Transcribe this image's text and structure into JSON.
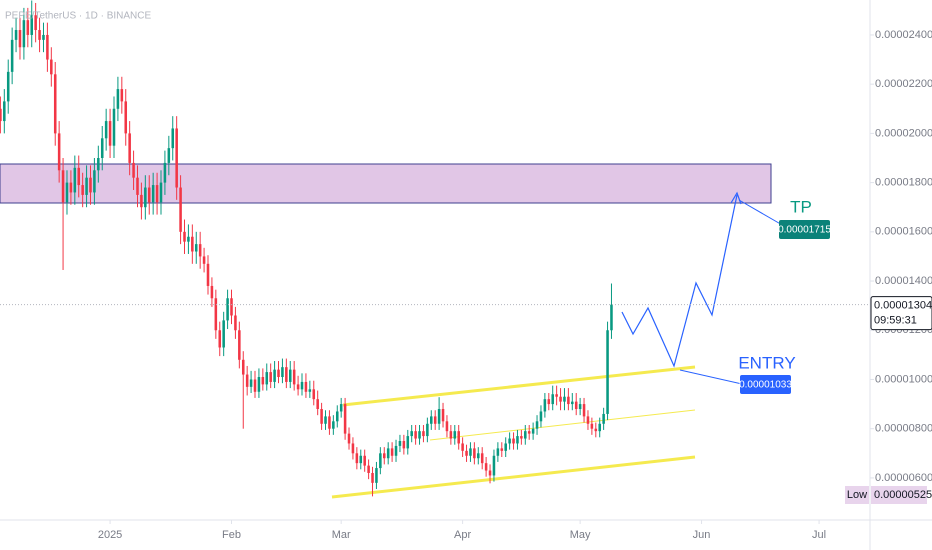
{
  "chart_data": {
    "type": "candlestick",
    "title": "PEPE/TetherUS · 1D · BINANCE",
    "open": [
      2.1e-05,
      2.05e-05,
      2.13e-05,
      2.25e-05,
      2.38e-05,
      2.42e-05,
      2.35e-05,
      2.46e-05,
      2.4e-05,
      2.48e-05,
      2.42e-05,
      2.38e-05,
      2.4e-05,
      2.3e-05,
      2.24e-05,
      2e-05,
      1.85e-05,
      1.72e-05,
      1.8e-05,
      1.76e-05,
      1.86e-05,
      1.79e-05,
      1.75e-05,
      1.82e-05,
      1.76e-05,
      1.85e-05,
      1.9e-05,
      1.98e-05,
      2.05e-05,
      1.95e-05,
      2.1e-05,
      2.18e-05,
      2.13e-05,
      2e-05,
      1.88e-05,
      1.82e-05,
      1.75e-05,
      1.7e-05,
      1.78e-05,
      1.72e-05,
      1.79e-05,
      1.72e-05,
      1.8e-05,
      1.88e-05,
      1.94e-05,
      2.02e-05,
      1.78e-05,
      1.6e-05,
      1.56e-05,
      1.58e-05,
      1.52e-05,
      1.55e-05,
      1.5e-05,
      1.47e-05,
      1.38e-05,
      1.33e-05,
      1.2e-05,
      1.13e-05,
      1.24e-05,
      1.33e-05,
      1.26e-05,
      1.2e-05,
      1.08e-05,
      1.02e-05,
      9.7e-06,
      1e-05,
      9.5e-06,
      1.01e-05,
      9.8e-06,
      1.03e-05,
      9.9e-06,
      1.04e-05,
      1.01e-05,
      1.05e-05,
      9.9e-06,
      1.04e-05,
      9.8e-06,
      9.6e-06,
      9.9e-06,
      9.5e-06,
      9.6e-06,
      9.2e-06,
      8.8e-06,
      8.2e-06,
      8.5e-06,
      8e-06,
      8.3e-06,
      8.7e-06,
      9e-06,
      7.8e-06,
      7.4e-06,
      7e-06,
      6.6e-06,
      6.9e-06,
      6.5e-06,
      6.2e-06,
      5.8e-06,
      6.4e-06,
      7e-06,
      6.8e-06,
      7.2e-06,
      6.9e-06,
      7.3e-06,
      7.5e-06,
      7.2e-06,
      7.7e-06,
      7.9e-06,
      7.6e-06,
      7.9e-06,
      7.7e-06,
      8.2e-06,
      8.5e-06,
      8.2e-06,
      8.8e-06,
      8.3e-06,
      7.9e-06,
      7.6e-06,
      7.9e-06,
      7.4e-06,
      7.1e-06,
      6.9e-06,
      7.2e-06,
      6.8e-06,
      7e-06,
      6.6e-06,
      6.3e-06,
      6.1e-06,
      6.9e-06,
      7.2e-06,
      7.1e-06,
      7.4e-06,
      7.6e-06,
      7.4e-06,
      7.7e-06,
      7.6e-06,
      7.9e-06,
      7.8e-06,
      8e-06,
      8.3e-06,
      8.7e-06,
      9.2e-06,
      9e-06,
      9.4e-06,
      9.3e-06,
      9.1e-06,
      9.3e-06,
      9e-06,
      9.1e-06,
      8.8e-06,
      9e-06,
      8.5e-06,
      8.2e-06,
      8e-06,
      7.9e-06,
      8.2e-06,
      8.6e-06,
      1.2e-05
    ],
    "high": [
      2.15e-05,
      2.18e-05,
      2.3e-05,
      2.43e-05,
      2.47e-05,
      2.47e-05,
      2.51e-05,
      2.51e-05,
      2.54e-05,
      2.53e-05,
      2.47e-05,
      2.45e-05,
      2.45e-05,
      2.35e-05,
      2.29e-05,
      2.05e-05,
      1.9e-05,
      1.85e-05,
      1.85e-05,
      1.91e-05,
      1.91e-05,
      1.84e-05,
      1.87e-05,
      1.87e-05,
      1.9e-05,
      1.95e-05,
      2.03e-05,
      2.1e-05,
      2.1e-05,
      2.15e-05,
      2.23e-05,
      2.23e-05,
      2.18e-05,
      2.05e-05,
      1.93e-05,
      1.87e-05,
      1.8e-05,
      1.83e-05,
      1.83e-05,
      1.84e-05,
      1.84e-05,
      1.85e-05,
      1.93e-05,
      1.99e-05,
      2.07e-05,
      2.07e-05,
      1.83e-05,
      1.65e-05,
      1.63e-05,
      1.63e-05,
      1.6e-05,
      1.6e-05,
      1.535e-05,
      1.505e-05,
      1.415e-05,
      1.365e-05,
      1.235e-05,
      1.275e-05,
      1.365e-05,
      1.365e-05,
      1.295e-05,
      1.235e-05,
      1.115e-05,
      1.055e-05,
      1.035e-05,
      1.035e-05,
      1.045e-05,
      1.045e-05,
      1.065e-05,
      1.065e-05,
      1.075e-05,
      1.075e-05,
      1.085e-05,
      1.085e-05,
      1.075e-05,
      1.075e-05,
      1.015e-05,
      1.025e-05,
      1.025e-05,
      9.95e-06,
      9.95e-06,
      9.55e-06,
      9.05e-06,
      8.75e-06,
      8.75e-06,
      8.55e-06,
      8.95e-06,
      9.25e-06,
      9.25e-06,
      8.05e-06,
      7.65e-06,
      7.25e-06,
      7.15e-06,
      7.15e-06,
      6.75e-06,
      6.45e-06,
      6.65e-06,
      7.25e-06,
      7.25e-06,
      7.45e-06,
      7.45e-06,
      7.55e-06,
      7.75e-06,
      7.75e-06,
      7.95e-06,
      8.15e-06,
      8.15e-06,
      8.15e-06,
      8.15e-06,
      8.45e-06,
      8.75e-06,
      8.75e-06,
      9.28e-06,
      9.05e-06,
      8.55e-06,
      8.15e-06,
      8.15e-06,
      8.15e-06,
      7.65e-06,
      7.35e-06,
      7.45e-06,
      7.45e-06,
      7.25e-06,
      7.25e-06,
      6.85e-06,
      6.55e-06,
      7.15e-06,
      7.45e-06,
      7.45e-06,
      7.65e-06,
      7.85e-06,
      7.85e-06,
      7.95e-06,
      7.95e-06,
      8.15e-06,
      8.15e-06,
      8.25e-06,
      8.55e-06,
      8.95e-06,
      9.45e-06,
      9.45e-06,
      9.75e-06,
      9.75e-06,
      9.65e-06,
      9.65e-06,
      9.65e-06,
      9.45e-06,
      9.45e-06,
      9.25e-06,
      9.25e-06,
      8.75e-06,
      8.45e-06,
      8.25e-06,
      8.45e-06,
      8.85e-06,
      1.235e-05,
      1.39e-05
    ],
    "low": [
      2e-05,
      2e-05,
      2.08e-05,
      2.2e-05,
      2.33e-05,
      2.3e-05,
      2.3e-05,
      2.35e-05,
      2.35e-05,
      2.37e-05,
      2.33e-05,
      2.33e-05,
      2.25e-05,
      2.19e-05,
      1.95e-05,
      1.8e-05,
      1.445e-05,
      1.67e-05,
      1.71e-05,
      1.71e-05,
      1.74e-05,
      1.7e-05,
      1.7e-05,
      1.71e-05,
      1.71e-05,
      1.8e-05,
      1.85e-05,
      1.93e-05,
      1.9e-05,
      1.9e-05,
      2.05e-05,
      2.08e-05,
      1.95e-05,
      1.83e-05,
      1.77e-05,
      1.7e-05,
      1.65e-05,
      1.65e-05,
      1.67e-05,
      1.67e-05,
      1.67e-05,
      1.67e-05,
      1.75e-05,
      1.83e-05,
      1.89e-05,
      1.73e-05,
      1.55e-05,
      1.51e-05,
      1.51e-05,
      1.47e-05,
      1.47e-05,
      1.45e-05,
      1.435e-05,
      1.345e-05,
      1.295e-05,
      1.165e-05,
      1.095e-05,
      1.095e-05,
      1.205e-05,
      1.225e-05,
      1.165e-05,
      1.045e-05,
      8e-06,
      9.35e-06,
      9.45e-06,
      9.25e-06,
      9.25e-06,
      9.55e-06,
      9.55e-06,
      9.65e-06,
      9.65e-06,
      9.85e-06,
      9.85e-06,
      9.65e-06,
      9.65e-06,
      9.55e-06,
      9.35e-06,
      9.35e-06,
      9.25e-06,
      9.25e-06,
      8.95e-06,
      8.55e-06,
      7.95e-06,
      7.95e-06,
      7.75e-06,
      7.75e-06,
      8.05e-06,
      8.45e-06,
      7.55e-06,
      7.15e-06,
      6.75e-06,
      6.35e-06,
      6.35e-06,
      6.25e-06,
      5.95e-06,
      5.25e-06,
      5.55e-06,
      6.15e-06,
      6.55e-06,
      6.55e-06,
      6.65e-06,
      6.65e-06,
      7.05e-06,
      6.95e-06,
      6.95e-06,
      7.45e-06,
      7.35e-06,
      7.35e-06,
      7.45e-06,
      7.45e-06,
      7.95e-06,
      7.95e-06,
      7.95e-06,
      8.05e-06,
      7.65e-06,
      7.35e-06,
      7.35e-06,
      7.15e-06,
      6.85e-06,
      6.65e-06,
      6.65e-06,
      6.55e-06,
      6.55e-06,
      6.35e-06,
      6.05e-06,
      5.78e-06,
      5.85e-06,
      6.65e-06,
      6.85e-06,
      6.85e-06,
      7.15e-06,
      7.15e-06,
      7.15e-06,
      7.35e-06,
      7.35e-06,
      7.55e-06,
      7.55e-06,
      7.75e-06,
      8.05e-06,
      8.45e-06,
      8.75e-06,
      8.75e-06,
      8.95e-06,
      8.75e-06,
      8.75e-06,
      8.75e-06,
      8.75e-06,
      8.55e-06,
      8.55e-06,
      8.25e-06,
      7.95e-06,
      7.75e-06,
      7.65e-06,
      7.65e-06,
      7.95e-06,
      8.35e-06,
      1.165e-05
    ],
    "close": [
      2.05e-05,
      2.13e-05,
      2.25e-05,
      2.38e-05,
      2.42e-05,
      2.35e-05,
      2.46e-05,
      2.4e-05,
      2.48e-05,
      2.42e-05,
      2.38e-05,
      2.4e-05,
      2.3e-05,
      2.24e-05,
      2e-05,
      1.85e-05,
      1.72e-05,
      1.8e-05,
      1.76e-05,
      1.86e-05,
      1.79e-05,
      1.75e-05,
      1.82e-05,
      1.76e-05,
      1.85e-05,
      1.9e-05,
      1.98e-05,
      2.05e-05,
      1.95e-05,
      2.1e-05,
      2.18e-05,
      2.13e-05,
      2e-05,
      1.88e-05,
      1.82e-05,
      1.75e-05,
      1.7e-05,
      1.78e-05,
      1.72e-05,
      1.79e-05,
      1.72e-05,
      1.8e-05,
      1.88e-05,
      1.94e-05,
      2.02e-05,
      1.78e-05,
      1.6e-05,
      1.56e-05,
      1.58e-05,
      1.52e-05,
      1.55e-05,
      1.5e-05,
      1.47e-05,
      1.38e-05,
      1.33e-05,
      1.2e-05,
      1.13e-05,
      1.24e-05,
      1.33e-05,
      1.26e-05,
      1.2e-05,
      1.08e-05,
      1.02e-05,
      9.7e-06,
      1e-05,
      9.5e-06,
      1.01e-05,
      9.8e-06,
      1.03e-05,
      9.9e-06,
      1.04e-05,
      1.01e-05,
      1.05e-05,
      9.9e-06,
      1.04e-05,
      9.8e-06,
      9.6e-06,
      9.9e-06,
      9.5e-06,
      9.6e-06,
      9.2e-06,
      8.8e-06,
      8.2e-06,
      8.5e-06,
      8e-06,
      8.3e-06,
      8.7e-06,
      9e-06,
      7.8e-06,
      7.4e-06,
      7e-06,
      6.6e-06,
      6.9e-06,
      6.5e-06,
      6.2e-06,
      5.8e-06,
      6.4e-06,
      7e-06,
      6.8e-06,
      7.2e-06,
      6.9e-06,
      7.3e-06,
      7.5e-06,
      7.2e-06,
      7.7e-06,
      7.9e-06,
      7.6e-06,
      7.9e-06,
      7.7e-06,
      8.2e-06,
      8.5e-06,
      8.2e-06,
      8.8e-06,
      8.3e-06,
      7.9e-06,
      7.6e-06,
      7.9e-06,
      7.4e-06,
      7.1e-06,
      6.9e-06,
      7.2e-06,
      6.8e-06,
      7e-06,
      6.6e-06,
      6.3e-06,
      6.1e-06,
      6.9e-06,
      7.2e-06,
      7.1e-06,
      7.4e-06,
      7.6e-06,
      7.4e-06,
      7.7e-06,
      7.6e-06,
      7.9e-06,
      7.8e-06,
      8e-06,
      8.3e-06,
      8.7e-06,
      9.2e-06,
      9e-06,
      9.4e-06,
      9.3e-06,
      9.1e-06,
      9.3e-06,
      9e-06,
      9.1e-06,
      8.8e-06,
      9e-06,
      8.5e-06,
      8.2e-06,
      8e-06,
      7.9e-06,
      8.2e-06,
      8.6e-06,
      1.2e-05,
      1.304e-05
    ],
    "up_color": "#089981",
    "down_color": "#f23645",
    "xlim": [
      -0.1,
      222
    ],
    "xticks": [
      {
        "value": 28,
        "label": "2025"
      },
      {
        "value": 59,
        "label": "Feb"
      },
      {
        "value": 87,
        "label": "Mar"
      },
      {
        "value": 118,
        "label": "Apr"
      },
      {
        "value": 148,
        "label": "May"
      },
      {
        "value": 179,
        "label": "Jun"
      },
      {
        "value": 209,
        "label": "Jul"
      }
    ],
    "ylim": [
      4.29e-06,
      2.542e-05
    ],
    "yticks": [
      {
        "value": 6e-06,
        "label": "0.00000600"
      },
      {
        "value": 8e-06,
        "label": "0.00000800"
      },
      {
        "value": 1e-05,
        "label": "0.00001000"
      },
      {
        "value": 1.2e-05,
        "label": "0.00001200"
      },
      {
        "value": 1.4e-05,
        "label": "0.00001400"
      },
      {
        "value": 1.6e-05,
        "label": "0.00001600"
      },
      {
        "value": 1.8e-05,
        "label": "0.00001800"
      },
      {
        "value": 2e-05,
        "label": "0.00002000"
      },
      {
        "value": 2.2e-05,
        "label": "0.00002200"
      },
      {
        "value": 2.4e-05,
        "label": "0.00002400"
      }
    ],
    "grid": false,
    "last_price": 1.304e-05,
    "countdown": "09:59:31",
    "low_label": "Low",
    "low_value": 5.25e-06,
    "tp_label": "TP",
    "tp_price": 1.715e-05,
    "entry_label": "ENTRY",
    "entry_price": 1.033e-05
  }
}
